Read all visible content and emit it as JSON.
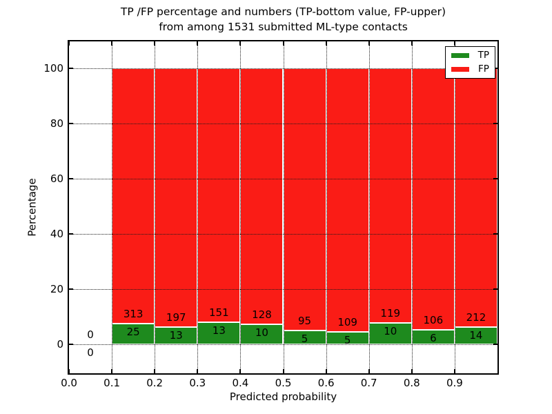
{
  "title": {
    "line1": "TP /FP percentage and numbers (TP-bottom value, FP-upper)",
    "line2": "from among 1531 submitted ML-type contacts"
  },
  "axes": {
    "xlabel": "Predicted probability",
    "ylabel": "Percentage"
  },
  "legend": {
    "position": "upper right",
    "entries": [
      {
        "label": "TP",
        "color": "#1e8a1e"
      },
      {
        "label": "FP",
        "color": "#fa1c16"
      }
    ]
  },
  "chart_data": {
    "type": "bar",
    "stacked": true,
    "normalized_to_percent": true,
    "title": "TP /FP percentage and numbers (TP-bottom value, FP-upper)\nfrom among 1531 submitted ML-type contacts",
    "xlabel": "Predicted probability",
    "ylabel": "Percentage",
    "total_contacts": 1531,
    "bin_width": 0.1,
    "bins": [
      {
        "x_start": 0.0,
        "tp": 0,
        "fp": 0
      },
      {
        "x_start": 0.1,
        "tp": 25,
        "fp": 313
      },
      {
        "x_start": 0.2,
        "tp": 13,
        "fp": 197
      },
      {
        "x_start": 0.3,
        "tp": 13,
        "fp": 151
      },
      {
        "x_start": 0.4,
        "tp": 10,
        "fp": 128
      },
      {
        "x_start": 0.5,
        "tp": 5,
        "fp": 95
      },
      {
        "x_start": 0.6,
        "tp": 5,
        "fp": 109
      },
      {
        "x_start": 0.7,
        "tp": 10,
        "fp": 119
      },
      {
        "x_start": 0.8,
        "tp": 6,
        "fp": 106
      },
      {
        "x_start": 0.9,
        "tp": 14,
        "fp": 212
      }
    ],
    "series": [
      {
        "name": "TP",
        "color": "#1e8a1e",
        "values": [
          0,
          25,
          13,
          13,
          10,
          5,
          5,
          10,
          6,
          14
        ]
      },
      {
        "name": "FP",
        "color": "#fa1c16",
        "values": [
          0,
          313,
          197,
          151,
          128,
          95,
          109,
          119,
          106,
          212
        ]
      }
    ],
    "x_tick_values": [
      0.0,
      0.1,
      0.2,
      0.3,
      0.4,
      0.5,
      0.6,
      0.7,
      0.8,
      0.9
    ],
    "x_tick_labels": [
      "0.0",
      "0.1",
      "0.2",
      "0.3",
      "0.4",
      "0.5",
      "0.6",
      "0.7",
      "0.8",
      "0.9"
    ],
    "y_tick_values": [
      0,
      20,
      40,
      60,
      80,
      100
    ],
    "y_tick_labels": [
      "0",
      "20",
      "40",
      "60",
      "80",
      "100"
    ],
    "xlim": [
      0.0,
      1.0
    ],
    "ylim": [
      -10.5,
      109.75
    ],
    "grid": "dotted, drawn above bars",
    "bar_edge_color": "#ffffff",
    "legend_position": "upper right"
  }
}
